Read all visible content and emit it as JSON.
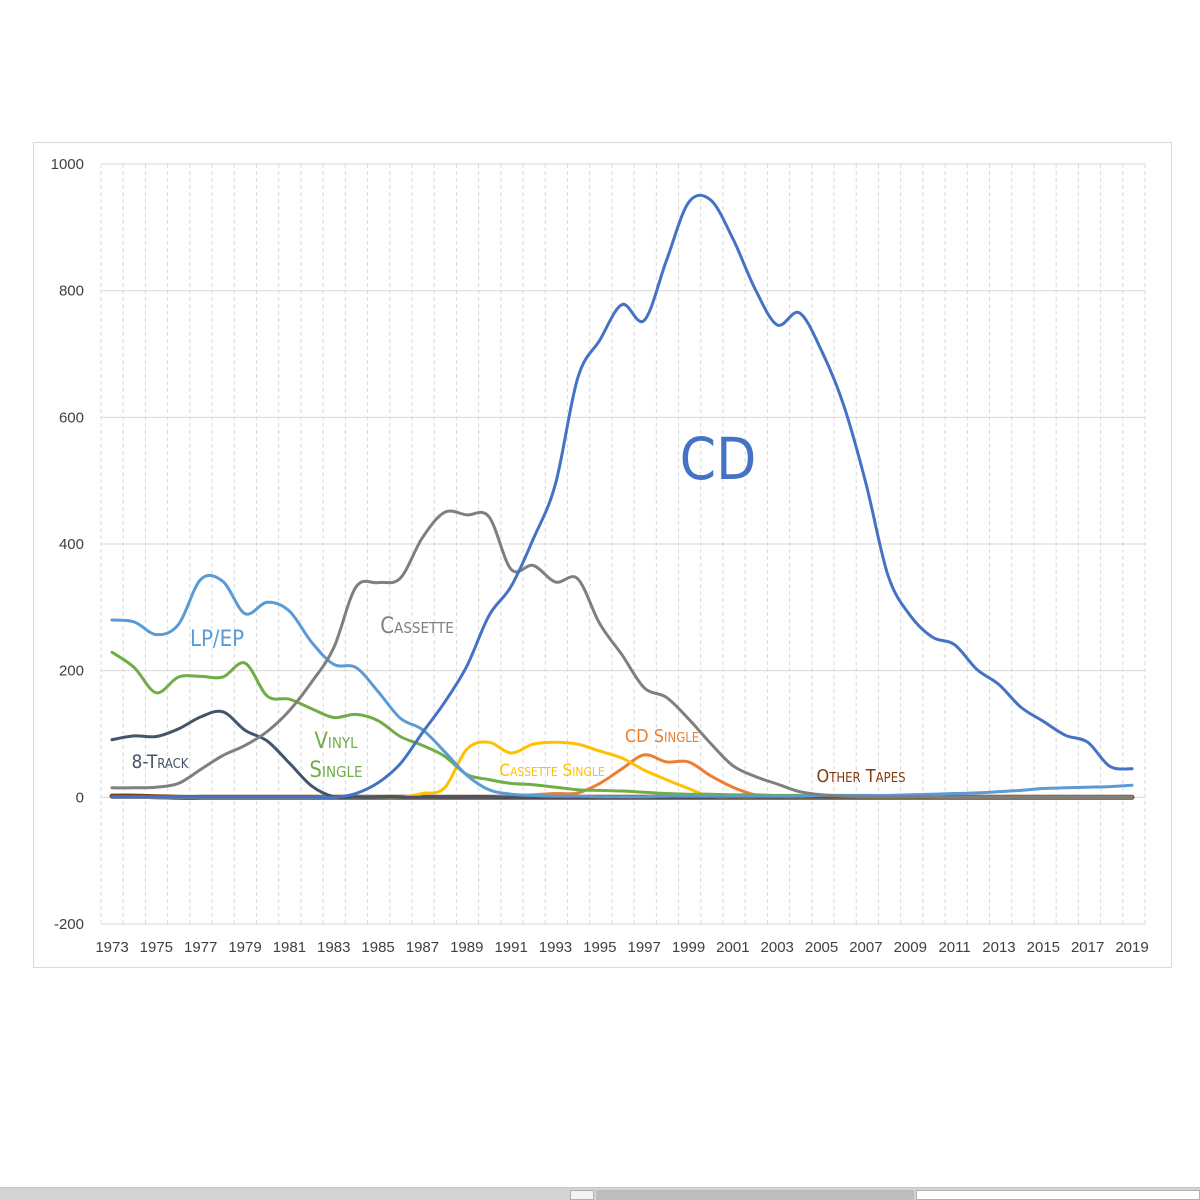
{
  "chart_data": {
    "type": "line",
    "title": "",
    "xlabel": "",
    "ylabel": "",
    "x": [
      1973,
      1974,
      1975,
      1976,
      1977,
      1978,
      1979,
      1980,
      1981,
      1982,
      1983,
      1984,
      1985,
      1986,
      1987,
      1988,
      1989,
      1990,
      1991,
      1992,
      1993,
      1994,
      1995,
      1996,
      1997,
      1998,
      1999,
      2000,
      2001,
      2002,
      2003,
      2004,
      2005,
      2006,
      2007,
      2008,
      2009,
      2010,
      2011,
      2012,
      2013,
      2014,
      2015,
      2016,
      2017,
      2018,
      2019
    ],
    "x_tick_labels": [
      "1973",
      "1975",
      "1977",
      "1979",
      "1981",
      "1983",
      "1985",
      "1987",
      "1989",
      "1991",
      "1993",
      "1995",
      "1997",
      "1999",
      "2001",
      "2003",
      "2005",
      "2007",
      "2009",
      "2011",
      "2013",
      "2015",
      "2017",
      "2019"
    ],
    "ylim": [
      -200,
      1000
    ],
    "y_ticks": [
      -200,
      0,
      200,
      400,
      600,
      800,
      1000
    ],
    "y_tick_labels": [
      "-200",
      "0",
      "200",
      "400",
      "600",
      "800",
      "1000"
    ],
    "grid": {
      "horizontal": "solid",
      "vertical": "dashed"
    },
    "legend": "none",
    "series": [
      {
        "name": "8-Track",
        "label": "8-Track",
        "color": "#44546a",
        "values": [
          91,
          97,
          96,
          108,
          127,
          135,
          106,
          89,
          54,
          18,
          1,
          0,
          0,
          0,
          0,
          0,
          0,
          0,
          0,
          0,
          0,
          0,
          0,
          0,
          0,
          0,
          0,
          0,
          0,
          0,
          0,
          0,
          0,
          0,
          0,
          0,
          0,
          0,
          0,
          0,
          0,
          0,
          0,
          0,
          0,
          0,
          0
        ]
      },
      {
        "name": "LP/EP",
        "label": "LP/EP",
        "color": "#5b9bd5",
        "values": [
          280,
          277,
          257,
          273,
          344,
          341,
          290,
          308,
          294,
          245,
          210,
          205,
          167,
          125,
          107,
          72,
          35,
          12,
          5,
          3,
          2,
          2,
          1,
          1,
          1,
          2,
          2,
          2,
          2,
          2,
          2,
          2,
          3,
          3,
          3,
          3,
          4,
          5,
          6,
          7,
          9,
          11,
          14,
          15,
          16,
          17,
          19
        ]
      },
      {
        "name": "Vinyl Single",
        "label": [
          "Vinyl",
          "Single"
        ],
        "color": "#70ad47",
        "values": [
          229,
          205,
          165,
          190,
          191,
          190,
          212,
          160,
          155,
          140,
          126,
          131,
          121,
          96,
          82,
          65,
          36,
          28,
          22,
          20,
          16,
          12,
          11,
          10,
          8,
          6,
          5,
          5,
          4,
          4,
          3,
          3,
          2,
          2,
          2,
          2,
          1,
          1,
          1,
          1,
          1,
          1,
          1,
          1,
          1,
          1,
          1
        ]
      },
      {
        "name": "Cassette",
        "label": "Cassette",
        "color": "#7f7f7f",
        "values": [
          15,
          15,
          16,
          22,
          44,
          66,
          82,
          104,
          137,
          182,
          236,
          332,
          339,
          346,
          410,
          450,
          446,
          443,
          360,
          366,
          340,
          345,
          274,
          225,
          173,
          158,
          124,
          85,
          50,
          33,
          21,
          9,
          4,
          2,
          1,
          1,
          1,
          1,
          0,
          0,
          0,
          0,
          0,
          0,
          0,
          0,
          0
        ]
      },
      {
        "name": "CD",
        "label": "CD",
        "color": "#4472c4",
        "values": [
          0,
          0,
          0,
          0,
          0,
          0,
          0,
          0,
          0,
          0,
          0,
          6,
          23,
          53,
          102,
          150,
          207,
          287,
          333,
          408,
          495,
          662,
          722,
          778,
          753,
          847,
          939,
          943,
          882,
          803,
          746,
          765,
          705,
          619,
          496,
          350,
          287,
          253,
          241,
          202,
          178,
          142,
          120,
          98,
          87,
          49,
          45
        ]
      },
      {
        "name": "Cassette Single",
        "label": "Cassette Single",
        "color": "#ffc000",
        "values": [
          0,
          0,
          0,
          0,
          0,
          0,
          0,
          0,
          0,
          0,
          0,
          0,
          0,
          0,
          6,
          15,
          76,
          87,
          70,
          84,
          87,
          84,
          73,
          62,
          43,
          28,
          14,
          1,
          0,
          0,
          0,
          0,
          0,
          0,
          0,
          0,
          0,
          0,
          0,
          0,
          0,
          0,
          0,
          0,
          0,
          0,
          0
        ]
      },
      {
        "name": "CD Single",
        "label": "CD Single",
        "color": "#ed7d31",
        "values": [
          0,
          0,
          0,
          0,
          0,
          0,
          0,
          0,
          0,
          0,
          0,
          0,
          0,
          0,
          0,
          0,
          0,
          0,
          2,
          4,
          6,
          7,
          22,
          45,
          67,
          56,
          56,
          34,
          16,
          4,
          1,
          0,
          0,
          0,
          0,
          0,
          0,
          0,
          0,
          0,
          0,
          0,
          0,
          0,
          0,
          0,
          0
        ]
      },
      {
        "name": "Other Tapes",
        "label": "Other Tapes",
        "color": "#843c0c",
        "values": [
          2,
          2,
          1,
          0,
          0,
          0,
          0,
          0,
          0,
          0,
          0,
          0,
          0,
          0,
          0,
          0,
          0,
          0,
          0,
          0,
          0,
          0,
          0,
          0,
          0,
          0,
          0,
          0,
          0,
          0,
          0,
          0,
          0,
          0,
          0,
          0,
          0,
          0,
          0,
          0,
          0,
          0,
          0,
          0,
          0,
          0,
          0
        ]
      }
    ]
  }
}
